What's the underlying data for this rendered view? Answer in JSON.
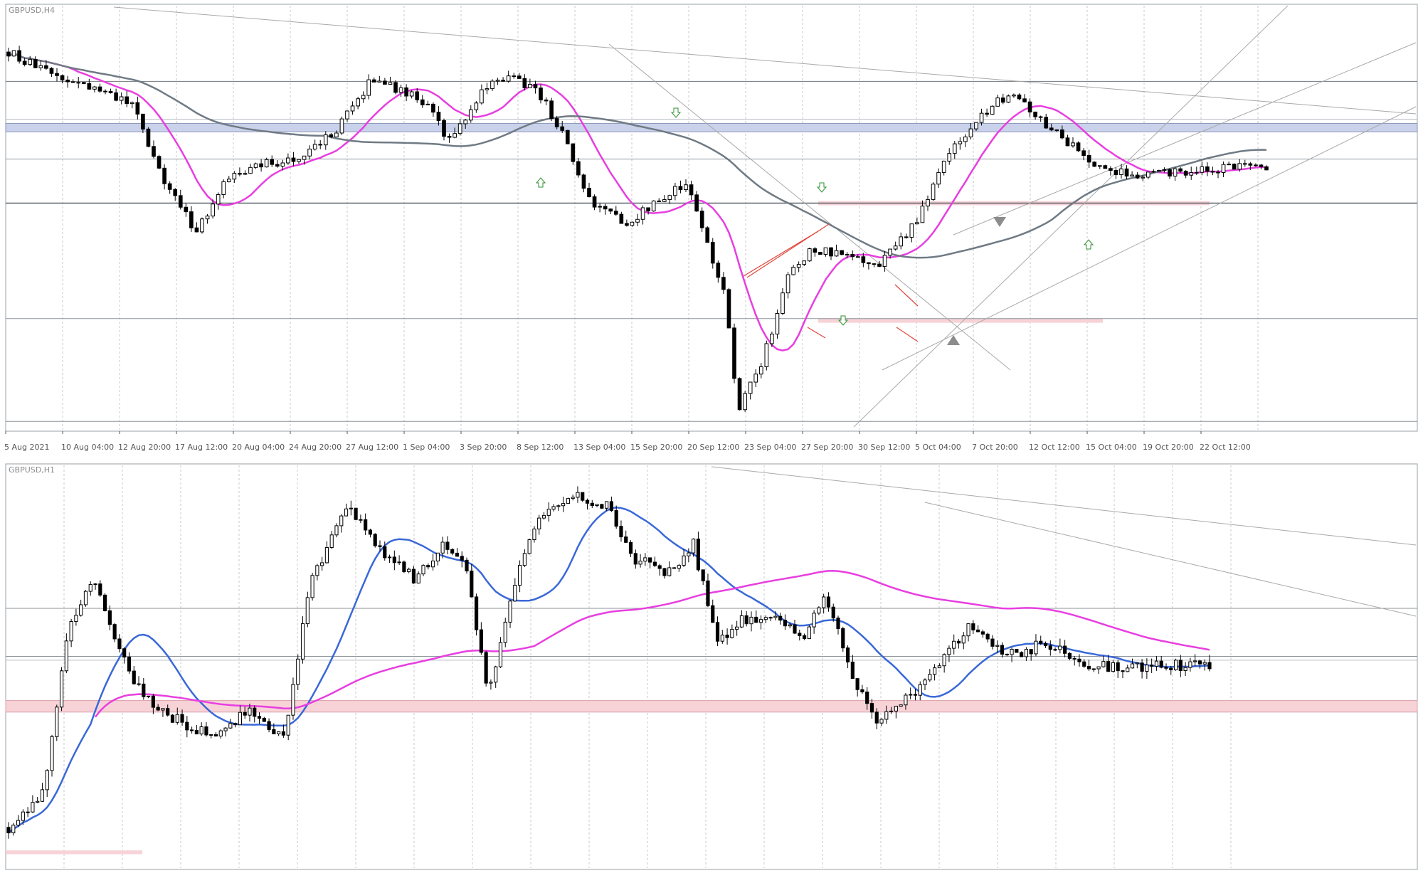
{
  "chart_data": [
    {
      "type": "candlestick",
      "title": "GBPUSD,H4",
      "xlabel": "",
      "ylabel": "",
      "x_tick_labels": [
        "5 Aug 2021",
        "10 Aug 04:00",
        "12 Aug 20:00",
        "17 Aug 12:00",
        "20 Aug 04:00",
        "24 Aug 20:00",
        "27 Aug 12:00",
        "1 Sep 04:00",
        "3 Sep 20:00",
        "8 Sep 12:00",
        "13 Sep 04:00",
        "15 Sep 20:00",
        "20 Sep 12:00",
        "23 Sep 04:00",
        "27 Sep 20:00",
        "30 Sep 12:00",
        "5 Oct 04:00",
        "7 Oct 20:00",
        "12 Oct 12:00",
        "15 Oct 04:00",
        "19 Oct 20:00",
        "22 Oct 12:00"
      ],
      "grid": true,
      "series": [
        {
          "kind": "ohlc"
        },
        {
          "kind": "ma"
        },
        {
          "kind": "ma"
        }
      ],
      "colors": {
        "ma_fast": "#e83ee0",
        "ma_slow": "#6f7a84",
        "zone_blue": "#c9d2ea",
        "zone_pink": "#f7d3d8",
        "candle": "#000000"
      }
    },
    {
      "type": "candlestick",
      "title": "GBPUSD,H1",
      "xlabel": "",
      "ylabel": "",
      "grid": true,
      "series": [
        {
          "kind": "ohlc"
        },
        {
          "kind": "ma"
        },
        {
          "kind": "ma"
        }
      ],
      "colors": {
        "ma_fast": "#3a68d8",
        "ma_slow": "#e83ee0",
        "zone_pink": "#f7d3d8",
        "candle": "#000000"
      }
    }
  ]
}
